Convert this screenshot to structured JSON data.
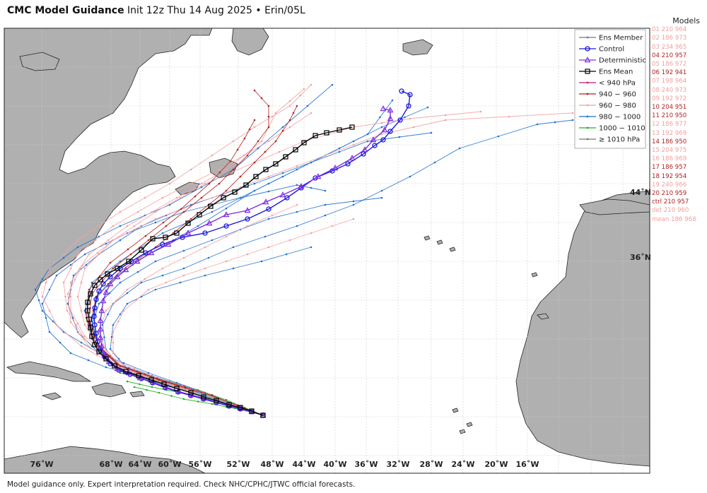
{
  "title": {
    "bold": "CMC Model Guidance",
    "rest": " Init 12z Thu 14 Aug 2025 • Erin/05L"
  },
  "footer": "Model guidance only. Expert interpretation required. Check NHC/CPHC/JTWC official forecasts.",
  "colors": {
    "water": "#ffffff",
    "land": "#b0b0b0",
    "coast": "#222222",
    "grid": "#cccccc",
    "cat_lt940": "#c2187a",
    "cat_940_960": "#b22222",
    "cat_960_980": "#f4a0a0",
    "cat_980_1000": "#1f6fd0",
    "cat_1000_1010": "#22b022",
    "cat_ge1010": "#777777",
    "control": "#1a1adb",
    "deterministic": "#7a2de0",
    "mean": "#000000"
  },
  "axes": {
    "lon_labels": [
      "76˚W",
      "68˚W",
      "64˚W",
      "60˚W",
      "56˚W",
      "52˚W",
      "48˚W",
      "44˚W",
      "40˚W",
      "36˚W",
      "32˚W",
      "28˚W",
      "24˚W",
      "20˚W",
      "16˚W"
    ],
    "lat_labels": [
      "44˚N",
      "36˚N"
    ]
  },
  "legend": {
    "items": [
      {
        "label": "Ens Member",
        "icon": "line-dot"
      },
      {
        "label": "Control",
        "icon": "circle"
      },
      {
        "label": "Deterministic",
        "icon": "triangle"
      },
      {
        "label": "Ens Mean",
        "icon": "square"
      },
      {
        "label": "< 940 hPa",
        "icon": "line-dot"
      },
      {
        "label": "940 − 960",
        "icon": "line-dot"
      },
      {
        "label": "960 − 980",
        "icon": "line-dot"
      },
      {
        "label": "980 − 1000",
        "icon": "line-dot"
      },
      {
        "label": "1000 − 1010",
        "icon": "line-dot"
      },
      {
        "label": "≥ 1010 hPa",
        "icon": "line-dot"
      }
    ]
  },
  "models": {
    "header": "Models",
    "items": [
      {
        "text": "01 210 964",
        "color": "#f2a0a0"
      },
      {
        "text": "02 186 973",
        "color": "#f2a0a0"
      },
      {
        "text": "03 234 965",
        "color": "#f2a0a0"
      },
      {
        "text": "04 210 957",
        "color": "#b22222"
      },
      {
        "text": "05 186 972",
        "color": "#f2a0a0"
      },
      {
        "text": "06 192 941",
        "color": "#b22222"
      },
      {
        "text": "07 198 964",
        "color": "#f2a0a0"
      },
      {
        "text": "08 240 973",
        "color": "#f2a0a0"
      },
      {
        "text": "09 192 972",
        "color": "#f2a0a0"
      },
      {
        "text": "10 204 951",
        "color": "#b22222"
      },
      {
        "text": "11 210 950",
        "color": "#b22222"
      },
      {
        "text": "12 186 977",
        "color": "#f2a0a0"
      },
      {
        "text": "13 192 969",
        "color": "#f2a0a0"
      },
      {
        "text": "14 186 950",
        "color": "#b22222"
      },
      {
        "text": "15 204 975",
        "color": "#f2a0a0"
      },
      {
        "text": "16 186 969",
        "color": "#f2a0a0"
      },
      {
        "text": "17 186 957",
        "color": "#b22222"
      },
      {
        "text": "18 192 954",
        "color": "#b22222"
      },
      {
        "text": "19 240 966",
        "color": "#f2a0a0"
      },
      {
        "text": "20 210 959",
        "color": "#b22222"
      },
      {
        "text": "ctrl 210 957",
        "color": "#b22222"
      },
      {
        "text": "det 210 960",
        "color": "#f2a0a0"
      },
      {
        "text": "mean 186 968",
        "color": "#f2a0a0"
      }
    ]
  }
}
